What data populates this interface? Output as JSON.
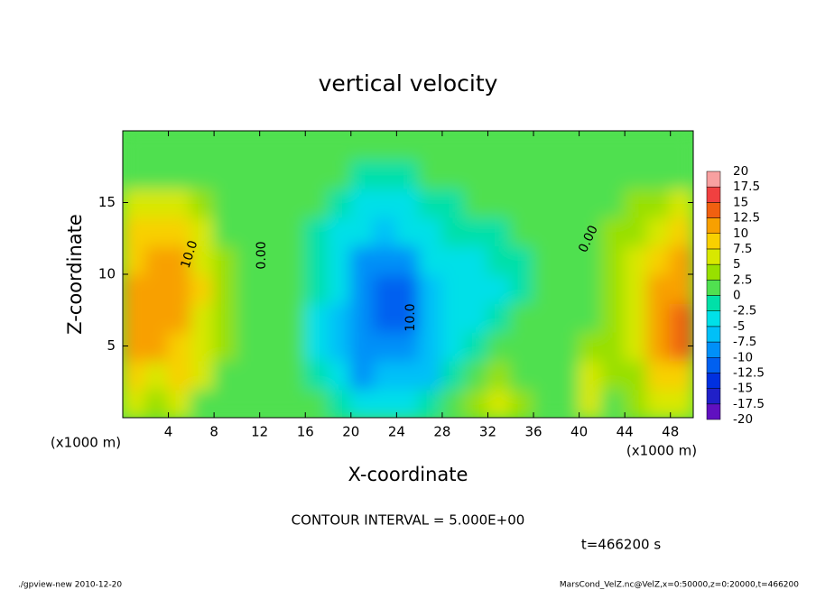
{
  "chart_data": {
    "type": "contour",
    "title": "vertical velocity",
    "x_label": "X-coordinate",
    "y_label": "Z-coordinate",
    "y_unit": "(x1000 m)",
    "x_unit": "(x1000 m)",
    "xlim": [
      0,
      50
    ],
    "ylim": [
      0,
      20
    ],
    "xticks": [
      4,
      8,
      12,
      16,
      20,
      24,
      28,
      32,
      36,
      40,
      44,
      48
    ],
    "yticks": [
      5,
      10,
      15
    ],
    "x": [
      1,
      3,
      5,
      7,
      9,
      11,
      13,
      15,
      17,
      19,
      21,
      23,
      25,
      27,
      29,
      31,
      33,
      35,
      37,
      39,
      41,
      43,
      45,
      47,
      49
    ],
    "y": [
      1,
      3,
      5,
      7,
      9,
      11,
      13,
      15,
      17,
      19
    ],
    "z": [
      [
        6,
        4,
        5,
        2,
        1,
        1,
        0,
        1,
        0,
        -1,
        -3,
        -4,
        -3,
        -2,
        1,
        4,
        7,
        3,
        1,
        1,
        6,
        2,
        3,
        5,
        6
      ],
      [
        8,
        7,
        8,
        5,
        2,
        1,
        1,
        0,
        -2,
        -4,
        -8,
        -7,
        -7,
        -6,
        -2,
        1,
        4,
        1,
        0,
        1,
        7,
        3,
        4,
        8,
        9
      ],
      [
        10,
        11,
        8,
        6,
        3,
        1,
        0,
        0,
        -3,
        -6,
        -9,
        -9,
        -8,
        -6,
        -3,
        -1,
        1,
        1,
        0,
        1,
        3,
        3,
        5,
        10,
        13
      ],
      [
        11,
        12,
        10,
        7,
        3,
        1,
        0,
        0,
        -3,
        -6,
        -9,
        -12,
        -11,
        -7,
        -4,
        -3,
        -2,
        0,
        0,
        1,
        2,
        3,
        6,
        11,
        13
      ],
      [
        11,
        11,
        11,
        8,
        3,
        1,
        0,
        0,
        -2,
        -5,
        -10,
        -12,
        -11,
        -6,
        -4,
        -4,
        -3,
        -1,
        0,
        1,
        2,
        3,
        6,
        11,
        12
      ],
      [
        9,
        10,
        10,
        7,
        3,
        1,
        0,
        0,
        -1,
        -4,
        -8,
        -9,
        -8,
        -5,
        -3,
        -3,
        -2,
        -1,
        0,
        1,
        2,
        3,
        5,
        8,
        10
      ],
      [
        8,
        9,
        8,
        5,
        2,
        1,
        0,
        0,
        -1,
        -3,
        -5,
        -6,
        -5,
        -3,
        -2,
        -1,
        -1,
        0,
        0,
        1,
        2,
        3,
        4,
        7,
        8
      ],
      [
        6,
        6,
        5,
        3,
        1,
        1,
        0,
        0,
        0,
        -2,
        -3,
        -3,
        -3,
        -2,
        -1,
        0,
        0,
        0,
        0,
        1,
        2,
        2,
        3,
        4,
        5
      ],
      [
        2,
        2,
        2,
        1,
        1,
        1,
        0,
        0,
        0,
        0,
        -1,
        -1,
        -1,
        0,
        0,
        0,
        0,
        0,
        0,
        1,
        1,
        1,
        1,
        2,
        2
      ],
      [
        1,
        1,
        1,
        1,
        1,
        1,
        0,
        0,
        0,
        0,
        0,
        0,
        0,
        0,
        0,
        0,
        0,
        0,
        0,
        1,
        1,
        1,
        1,
        1,
        1
      ]
    ],
    "clim": [
      -20,
      20
    ],
    "colorbar_ticks": [
      20,
      17.5,
      15,
      12.5,
      10,
      7.5,
      5,
      2.5,
      0,
      -2.5,
      -5,
      -7.5,
      -10,
      -12.5,
      -15,
      -17.5,
      -20
    ],
    "colors": [
      "#6010c0",
      "#2020c8",
      "#0030e0",
      "#0060f0",
      "#0090f8",
      "#00c0f8",
      "#00e0e8",
      "#00e0a8",
      "#50e050",
      "#98e000",
      "#d8e800",
      "#f8d000",
      "#f8a000",
      "#f06010",
      "#f04040",
      "#f8a0a0"
    ],
    "contour_labels": [
      "10.0",
      "0.00",
      "10.0",
      "0.00"
    ],
    "contour_interval": "CONTOUR INTERVAL = 5.000E+00",
    "time": "t=466200 s",
    "footer_left": "./gpview-new  2010-12-20",
    "footer_right": "MarsCond_VelZ.nc@VelZ,x=0:50000,z=0:20000,t=466200"
  }
}
